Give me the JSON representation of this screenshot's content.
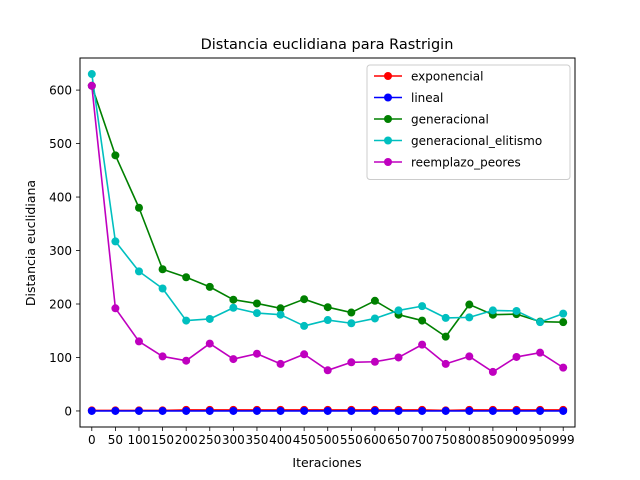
{
  "chart_data": {
    "type": "line",
    "title": "Distancia euclidiana para Rastrigin",
    "xlabel": "Iteraciones",
    "ylabel": "Distancia euclidiana",
    "x": [
      0,
      50,
      100,
      150,
      200,
      250,
      300,
      350,
      400,
      450,
      500,
      550,
      600,
      650,
      700,
      750,
      800,
      850,
      900,
      950,
      999
    ],
    "xtick_labels": [
      "0",
      "50",
      "100",
      "150",
      "200",
      "250",
      "300",
      "350",
      "400",
      "450",
      "500",
      "550",
      "600",
      "650",
      "700",
      "750",
      "800",
      "850",
      "900",
      "950",
      "999"
    ],
    "ylim": [
      -30,
      660
    ],
    "yticks": [
      0,
      100,
      200,
      300,
      400,
      500,
      600
    ],
    "grid": false,
    "legend_position": "top-right",
    "series": [
      {
        "name": "exponencial",
        "color": "#ff0000",
        "values": [
          1,
          1,
          1,
          1,
          2,
          2,
          2,
          2,
          2,
          2,
          2,
          2,
          2,
          2,
          2,
          1,
          2,
          2,
          2,
          2,
          2
        ]
      },
      {
        "name": "lineal",
        "color": "#0000ff",
        "values": [
          0,
          0,
          0,
          0,
          0,
          0,
          0,
          0,
          0,
          0,
          0,
          0,
          0,
          0,
          0,
          0,
          0,
          0,
          0,
          0,
          0
        ]
      },
      {
        "name": "generacional",
        "color": "#008000",
        "values": [
          608,
          478,
          380,
          265,
          250,
          232,
          208,
          201,
          192,
          209,
          194,
          184,
          206,
          180,
          169,
          139,
          199,
          180,
          181,
          167,
          166
        ]
      },
      {
        "name": "generacional_elitismo",
        "color": "#00bfbf",
        "values": [
          630,
          317,
          261,
          229,
          169,
          172,
          193,
          183,
          180,
          159,
          170,
          164,
          173,
          188,
          196,
          174,
          175,
          188,
          187,
          166,
          182
        ]
      },
      {
        "name": "reemplazo_peores",
        "color": "#bf00bf",
        "values": [
          608,
          192,
          130,
          102,
          94,
          126,
          97,
          107,
          88,
          106,
          76,
          91,
          92,
          100,
          124,
          88,
          102,
          73,
          101,
          109,
          81
        ]
      }
    ]
  }
}
